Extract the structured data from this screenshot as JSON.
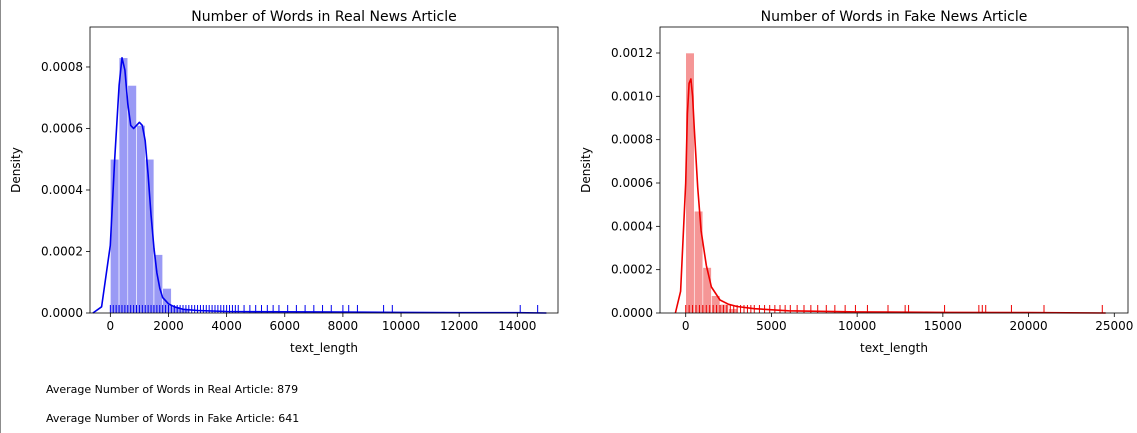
{
  "chart_data": [
    {
      "type": "histogram",
      "title": "Number of Words in Real News Article",
      "xlabel": "text_length",
      "ylabel": "Density",
      "xlim": [
        -700,
        15400
      ],
      "ylim": [
        0,
        0.00093
      ],
      "xticks": [
        0,
        2000,
        4000,
        6000,
        8000,
        10000,
        12000,
        14000
      ],
      "xtick_labels": [
        "0",
        "2000",
        "4000",
        "6000",
        "8000",
        "10000",
        "12000",
        "14000"
      ],
      "yticks": [
        0,
        0.0002,
        0.0004,
        0.0006,
        0.0008
      ],
      "ytick_labels": [
        "0.0000",
        "0.0002",
        "0.0004",
        "0.0006",
        "0.0008"
      ],
      "colors": {
        "hist": "#9a9af5",
        "kde": "#0000ee",
        "rug": "#0000ee"
      },
      "bins": [
        {
          "x0": 0,
          "x1": 300,
          "y": 0.0005
        },
        {
          "x0": 300,
          "x1": 600,
          "y": 0.00083
        },
        {
          "x0": 600,
          "x1": 900,
          "y": 0.00074
        },
        {
          "x0": 900,
          "x1": 1200,
          "y": 0.00061
        },
        {
          "x0": 1200,
          "x1": 1500,
          "y": 0.0005
        },
        {
          "x0": 1500,
          "x1": 1800,
          "y": 0.00019
        },
        {
          "x0": 1800,
          "x1": 2100,
          "y": 8e-05
        },
        {
          "x0": 2100,
          "x1": 2400,
          "y": 2e-05
        },
        {
          "x0": 2400,
          "x1": 2700,
          "y": 1e-05
        }
      ],
      "kde": {
        "x": [
          -600,
          -300,
          0,
          150,
          300,
          400,
          500,
          600,
          700,
          800,
          900,
          1000,
          1100,
          1200,
          1300,
          1400,
          1500,
          1600,
          1700,
          1800,
          2000,
          2200,
          2500,
          3000,
          4000,
          6000,
          8000,
          10000,
          12000,
          14000,
          15000
        ],
        "y": [
          0,
          2e-05,
          0.00022,
          0.0005,
          0.00074,
          0.00083,
          0.00079,
          0.00068,
          0.00061,
          0.0006,
          0.00061,
          0.00062,
          0.00061,
          0.00056,
          0.00045,
          0.00032,
          0.00021,
          0.00013,
          8e-05,
          5e-05,
          3e-05,
          2e-05,
          1.2e-05,
          8e-06,
          5e-06,
          4e-06,
          3e-06,
          2e-06,
          1e-06,
          1e-06,
          0
        ]
      },
      "rug": [
        0,
        100,
        200,
        300,
        400,
        500,
        600,
        700,
        800,
        900,
        1000,
        1100,
        1200,
        1300,
        1400,
        1500,
        1600,
        1700,
        1800,
        1900,
        2000,
        2100,
        2200,
        2300,
        2400,
        2500,
        2600,
        2700,
        2800,
        2900,
        3000,
        3100,
        3200,
        3300,
        3400,
        3500,
        3600,
        3700,
        3800,
        3900,
        4000,
        4100,
        4200,
        4300,
        4400,
        4600,
        4800,
        5000,
        5200,
        5400,
        5600,
        5800,
        6100,
        6400,
        6700,
        7000,
        7300,
        7600,
        8000,
        8200,
        8500,
        9400,
        9700,
        14100,
        14700
      ]
    },
    {
      "type": "histogram",
      "title": "Number of Words in Fake News Article",
      "xlabel": "text_length",
      "ylabel": "Density",
      "xlim": [
        -1500,
        25800
      ],
      "ylim": [
        0,
        0.00132
      ],
      "xticks": [
        0,
        5000,
        10000,
        15000,
        20000,
        25000
      ],
      "xtick_labels": [
        "0",
        "5000",
        "10000",
        "15000",
        "20000",
        "25000"
      ],
      "yticks": [
        0,
        0.0002,
        0.0004,
        0.0006,
        0.0008,
        0.001,
        0.0012
      ],
      "ytick_labels": [
        "0.0000",
        "0.0002",
        "0.0004",
        "0.0006",
        "0.0008",
        "0.0010",
        "0.0012"
      ],
      "colors": {
        "hist": "#f59696",
        "kde": "#ee0000",
        "rug": "#ee0000"
      },
      "bins": [
        {
          "x0": 0,
          "x1": 500,
          "y": 0.0012
        },
        {
          "x0": 500,
          "x1": 1000,
          "y": 0.00047
        },
        {
          "x0": 1000,
          "x1": 1500,
          "y": 0.00021
        },
        {
          "x0": 1500,
          "x1": 2000,
          "y": 8e-05
        },
        {
          "x0": 2000,
          "x1": 2500,
          "y": 4e-05
        },
        {
          "x0": 2500,
          "x1": 3000,
          "y": 2e-05
        }
      ],
      "kde": {
        "x": [
          -600,
          -300,
          0,
          100,
          200,
          300,
          400,
          500,
          700,
          900,
          1200,
          1500,
          2000,
          2500,
          3000,
          4000,
          6000,
          10000,
          15000,
          20000,
          24500
        ],
        "y": [
          0,
          0.0001,
          0.0006,
          0.00092,
          0.00106,
          0.00108,
          0.001,
          0.00085,
          0.00058,
          0.00038,
          0.00022,
          0.00012,
          6e-05,
          4e-05,
          3e-05,
          2e-05,
          1e-05,
          5e-06,
          3e-06,
          2e-06,
          0
        ]
      },
      "rug": [
        0,
        200,
        400,
        600,
        800,
        1000,
        1200,
        1400,
        1600,
        1800,
        2000,
        2200,
        2400,
        2600,
        2800,
        3000,
        3200,
        3400,
        3600,
        3800,
        4000,
        4300,
        4600,
        4900,
        5200,
        5500,
        5800,
        6100,
        6500,
        6900,
        7300,
        7700,
        8200,
        8700,
        9300,
        9900,
        10600,
        11800,
        12800,
        13000,
        15100,
        17100,
        17300,
        17500,
        19000,
        20900,
        24300
      ]
    }
  ],
  "summary": {
    "real_line": "Average Number of Words in Real Article: 879",
    "fake_line": "Average Number of Words in Fake Article: 641"
  }
}
